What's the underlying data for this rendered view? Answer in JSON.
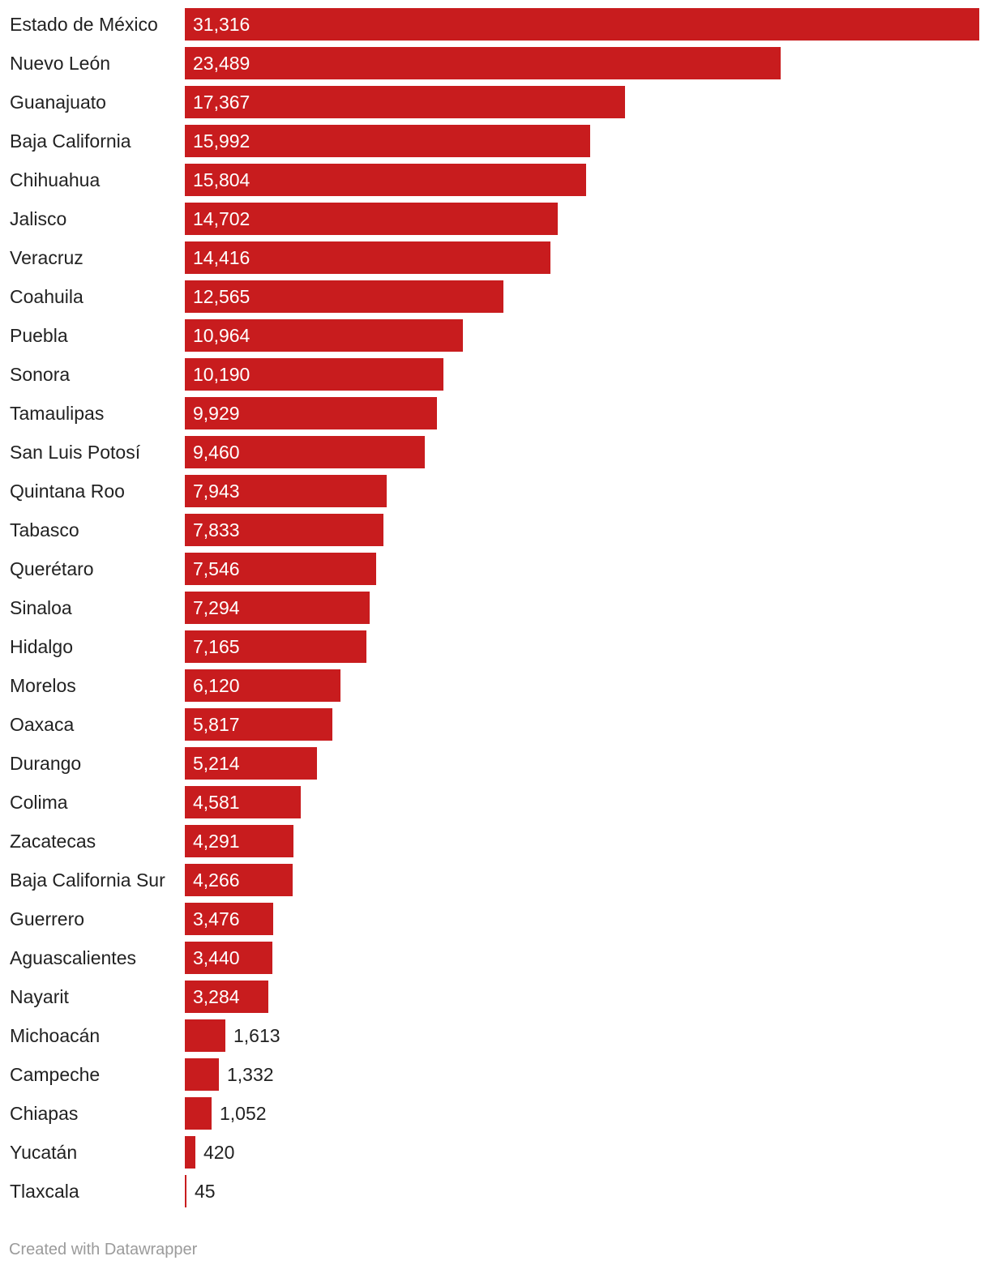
{
  "chart_data": {
    "type": "bar",
    "orientation": "horizontal",
    "categories": [
      "Estado de México",
      "Nuevo León",
      "Guanajuato",
      "Baja California",
      "Chihuahua",
      "Jalisco",
      "Veracruz",
      "Coahuila",
      "Puebla",
      "Sonora",
      "Tamaulipas",
      "San Luis Potosí",
      "Quintana Roo",
      "Tabasco",
      "Querétaro",
      "Sinaloa",
      "Hidalgo",
      "Morelos",
      "Oaxaca",
      "Durango",
      "Colima",
      "Zacatecas",
      "Baja California Sur",
      "Guerrero",
      "Aguascalientes",
      "Nayarit",
      "Michoacán",
      "Campeche",
      "Chiapas",
      "Yucatán",
      "Tlaxcala"
    ],
    "values": [
      31316,
      23489,
      17367,
      15992,
      15804,
      14702,
      14416,
      12565,
      10964,
      10190,
      9929,
      9460,
      7943,
      7833,
      7546,
      7294,
      7165,
      6120,
      5817,
      5214,
      4581,
      4291,
      4266,
      3476,
      3440,
      3284,
      1613,
      1332,
      1052,
      420,
      45
    ],
    "value_labels": [
      "31,316",
      "23,489",
      "17,367",
      "15,992",
      "15,804",
      "14,702",
      "14,416",
      "12,565",
      "10,964",
      "10,190",
      "9,929",
      "9,460",
      "7,943",
      "7,833",
      "7,546",
      "7,294",
      "7,165",
      "6,120",
      "5,817",
      "5,214",
      "4,581",
      "4,291",
      "4,266",
      "3,476",
      "3,440",
      "3,284",
      "1,613",
      "1,332",
      "1,052",
      "420",
      "45"
    ],
    "xlim": [
      0,
      31316
    ],
    "grid": false,
    "legend": "none",
    "bar_color": "#c81c1e"
  },
  "footer": {
    "credit": "Created with Datawrapper"
  }
}
